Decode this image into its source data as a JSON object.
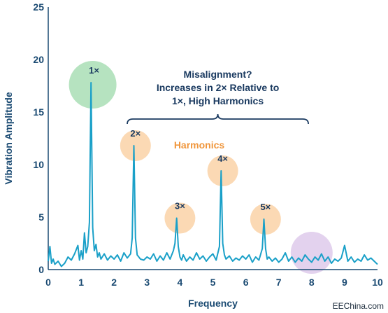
{
  "chart_data": {
    "type": "line",
    "title": "",
    "xlabel": "Frequency",
    "ylabel": "Vibration Amplitude",
    "xlim": [
      0,
      10
    ],
    "ylim": [
      0,
      25
    ],
    "xticks": [
      "0",
      "1",
      "2",
      "3",
      "4",
      "5",
      "6",
      "7",
      "8",
      "9",
      "10"
    ],
    "yticks": [
      "0",
      "5",
      "10",
      "15",
      "20",
      "25"
    ],
    "grid": "none",
    "line_color": "#1aa0c8",
    "axis_color": "#1a4a72",
    "series": [
      {
        "x": [
          0,
          0.05,
          0.1,
          0.15,
          0.2,
          0.3,
          0.4,
          0.5,
          0.6,
          0.7,
          0.8,
          0.9,
          0.95,
          1.0,
          1.05,
          1.1,
          1.15,
          1.2,
          1.25,
          1.3,
          1.35,
          1.4,
          1.45,
          1.5,
          1.55,
          1.6,
          1.7,
          1.8,
          1.9,
          2.0,
          2.1,
          2.2,
          2.3,
          2.4,
          2.5,
          2.55,
          2.6,
          2.65,
          2.7,
          2.8,
          2.9,
          3.0,
          3.1,
          3.2,
          3.3,
          3.4,
          3.5,
          3.6,
          3.7,
          3.8,
          3.85,
          3.9,
          3.95,
          4.0,
          4.05,
          4.1,
          4.2,
          4.3,
          4.4,
          4.5,
          4.6,
          4.7,
          4.8,
          4.9,
          5.0,
          5.1,
          5.2,
          5.25,
          5.3,
          5.35,
          5.4,
          5.5,
          5.6,
          5.7,
          5.8,
          5.9,
          6.0,
          6.1,
          6.2,
          6.3,
          6.4,
          6.5,
          6.55,
          6.6,
          6.65,
          6.7,
          6.8,
          6.9,
          7.0,
          7.1,
          7.2,
          7.3,
          7.4,
          7.5,
          7.6,
          7.7,
          7.8,
          7.9,
          8.0,
          8.1,
          8.2,
          8.3,
          8.4,
          8.5,
          8.6,
          8.7,
          8.8,
          8.9,
          9.0,
          9.1,
          9.2,
          9.3,
          9.4,
          9.5,
          9.6,
          9.7,
          9.8,
          9.9,
          10.0
        ],
        "y": [
          0.8,
          2.2,
          0.6,
          1.0,
          0.5,
          0.8,
          0.3,
          0.6,
          1.2,
          0.9,
          1.5,
          2.3,
          0.9,
          1.8,
          1.0,
          3.5,
          1.6,
          2.2,
          4.5,
          17.8,
          4.0,
          1.8,
          2.4,
          1.2,
          1.6,
          1.0,
          1.5,
          0.9,
          1.3,
          1.0,
          1.4,
          0.8,
          1.6,
          1.1,
          1.5,
          3.0,
          11.8,
          3.0,
          1.4,
          1.0,
          0.9,
          1.2,
          1.0,
          1.5,
          0.8,
          1.3,
          0.9,
          1.6,
          1.0,
          1.8,
          2.5,
          4.9,
          2.2,
          1.2,
          0.9,
          1.4,
          0.8,
          1.2,
          0.9,
          1.6,
          1.0,
          1.3,
          0.8,
          1.2,
          1.5,
          0.9,
          2.2,
          9.4,
          2.5,
          1.4,
          1.0,
          1.3,
          0.8,
          1.1,
          0.9,
          1.3,
          1.0,
          1.4,
          0.7,
          1.2,
          0.9,
          2.0,
          4.8,
          2.0,
          1.0,
          1.2,
          0.8,
          1.1,
          0.7,
          1.0,
          1.6,
          0.8,
          1.2,
          0.7,
          1.1,
          0.8,
          1.4,
          1.0,
          0.7,
          1.2,
          0.9,
          1.5,
          0.8,
          1.2,
          0.6,
          1.0,
          0.8,
          1.1,
          2.3,
          0.8,
          1.2,
          0.7,
          1.0,
          0.8,
          1.4,
          0.9,
          1.1,
          0.8,
          0.5
        ]
      }
    ],
    "highlights": [
      {
        "label": "1×",
        "x": 1.35,
        "y": 17.6,
        "color": "#b6e3c0"
      },
      {
        "label": "2×",
        "x": 2.65,
        "y": 11.8,
        "color": "#fbd9b4"
      },
      {
        "label": "3×",
        "x": 4.0,
        "y": 4.9,
        "color": "#fbd9b4"
      },
      {
        "label": "4×",
        "x": 5.3,
        "y": 9.4,
        "color": "#fbd9b4"
      },
      {
        "label": "5×",
        "x": 6.6,
        "y": 4.8,
        "color": "#fbd9b4"
      },
      {
        "label": "",
        "x": 8.0,
        "y": 1.6,
        "color": "#e3d2ee"
      }
    ],
    "annotations": {
      "callout_lines": [
        "Misalignment?",
        "Increases in 2× Relative to",
        "1×, High Harmonics"
      ],
      "brace_x_range": [
        2.4,
        7.9
      ],
      "harmonics_label": "Harmonics"
    },
    "watermark": "EEChina.com"
  }
}
